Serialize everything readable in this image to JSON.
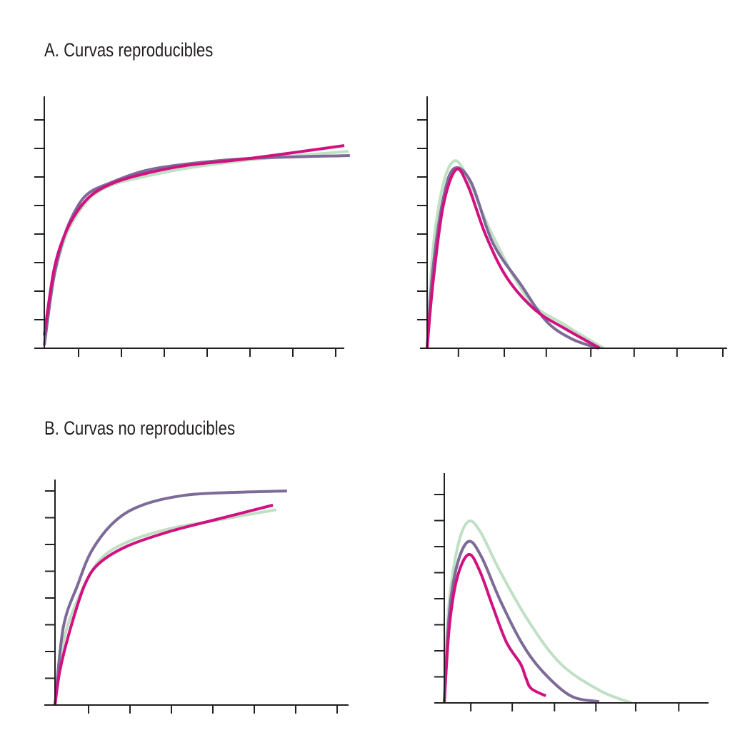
{
  "titles": {
    "a": "A. Curvas reproducibles",
    "b": "B. Curvas no reproducibles"
  },
  "colors": {
    "magenta": "#d0117f",
    "purple": "#7d6a97",
    "green": "#bfe0c4",
    "axis": "#231f20"
  },
  "chart_data": [
    {
      "type": "line",
      "panel": "A-left",
      "title": "",
      "xlabel": "",
      "ylabel": "",
      "grid": false,
      "xlim": [
        0,
        7
      ],
      "ylim": [
        0,
        8.8
      ],
      "xticks": [
        0.8,
        1.8,
        2.8,
        3.8,
        4.8,
        5.8,
        6.8
      ],
      "yticks": [
        1,
        2,
        3,
        4,
        5,
        6,
        7,
        8
      ],
      "series": [
        {
          "color": "#bfe0c4",
          "points": [
            [
              0,
              0.1
            ],
            [
              0.2,
              2.3
            ],
            [
              0.47,
              3.8
            ],
            [
              0.77,
              4.7
            ],
            [
              1.13,
              5.35
            ],
            [
              1.63,
              5.75
            ],
            [
              2.3,
              6.0
            ],
            [
              3.3,
              6.3
            ],
            [
              4.8,
              6.6
            ],
            [
              7.1,
              6.9
            ]
          ]
        },
        {
          "color": "#7d6a97",
          "points": [
            [
              0,
              0.1
            ],
            [
              0.22,
              2.45
            ],
            [
              0.47,
              3.95
            ],
            [
              0.77,
              4.95
            ],
            [
              1.05,
              5.45
            ],
            [
              1.47,
              5.75
            ],
            [
              2.3,
              6.2
            ],
            [
              3.3,
              6.45
            ],
            [
              4.8,
              6.65
            ],
            [
              7.13,
              6.75
            ]
          ]
        },
        {
          "color": "#d0117f",
          "points": [
            [
              0,
              0.45
            ],
            [
              0.22,
              2.7
            ],
            [
              0.47,
              3.95
            ],
            [
              0.77,
              4.8
            ],
            [
              1.13,
              5.4
            ],
            [
              1.63,
              5.8
            ],
            [
              2.3,
              6.1
            ],
            [
              3.3,
              6.4
            ],
            [
              4.8,
              6.65
            ],
            [
              7,
              7.1
            ]
          ]
        }
      ]
    },
    {
      "type": "line",
      "panel": "A-right",
      "title": "",
      "xlabel": "",
      "ylabel": "",
      "grid": false,
      "xlim": [
        0,
        7
      ],
      "ylim": [
        0,
        8.8
      ],
      "xticks": [
        0.73,
        1.8,
        2.78,
        3.82,
        4.83,
        5.83,
        6.9
      ],
      "yticks": [
        1,
        2,
        3,
        4,
        5,
        6,
        7,
        8
      ],
      "series": [
        {
          "color": "#bfe0c4",
          "points": [
            [
              0,
              0
            ],
            [
              0.12,
              3.2
            ],
            [
              0.33,
              5.45
            ],
            [
              0.58,
              6.5
            ],
            [
              0.87,
              6.2
            ],
            [
              1.53,
              3.95
            ],
            [
              2.37,
              1.7
            ],
            [
              3.2,
              0.83
            ],
            [
              4.12,
              0
            ]
          ]
        },
        {
          "color": "#7d6a97",
          "points": [
            [
              0,
              0
            ],
            [
              0.13,
              2.7
            ],
            [
              0.37,
              5.2
            ],
            [
              0.63,
              6.3
            ],
            [
              1.03,
              5.8
            ],
            [
              1.53,
              3.7
            ],
            [
              2.2,
              2.2
            ],
            [
              2.78,
              0.95
            ],
            [
              3.37,
              0.33
            ],
            [
              4,
              0
            ]
          ]
        },
        {
          "color": "#d0117f",
          "points": [
            [
              0,
              0
            ],
            [
              0.13,
              2.2
            ],
            [
              0.37,
              4.95
            ],
            [
              0.67,
              6.25
            ],
            [
              0.95,
              5.7
            ],
            [
              1.37,
              3.95
            ],
            [
              1.87,
              2.45
            ],
            [
              2.53,
              1.33
            ],
            [
              3.2,
              0.7
            ],
            [
              4.03,
              0
            ]
          ]
        }
      ]
    },
    {
      "type": "line",
      "panel": "B-left",
      "title": "",
      "xlabel": "",
      "ylabel": "",
      "grid": false,
      "xlim": [
        0,
        7
      ],
      "ylim": [
        0,
        8.4
      ],
      "xticks": [
        0.81,
        1.81,
        2.81,
        3.81,
        4.81,
        5.81,
        6.81
      ],
      "yticks": [
        1,
        2,
        3,
        4,
        5,
        6,
        7,
        8
      ],
      "series": [
        {
          "color": "#bfe0c4",
          "points": [
            [
              0,
              0
            ],
            [
              0.2,
              2.35
            ],
            [
              0.55,
              3.95
            ],
            [
              1.07,
              5.4
            ],
            [
              1.76,
              6.1
            ],
            [
              2.8,
              6.6
            ],
            [
              3.88,
              6.9
            ],
            [
              5.34,
              7.3
            ]
          ]
        },
        {
          "color": "#7d6a97",
          "points": [
            [
              0,
              0
            ],
            [
              0.2,
              2.9
            ],
            [
              0.55,
              4.5
            ],
            [
              0.9,
              5.8
            ],
            [
              1.47,
              6.9
            ],
            [
              2.16,
              7.5
            ],
            [
              3.19,
              7.85
            ],
            [
              4.4,
              7.95
            ],
            [
              5.6,
              8.0
            ]
          ]
        },
        {
          "color": "#d0117f",
          "points": [
            [
              0,
              0
            ],
            [
              0.12,
              1.3
            ],
            [
              0.38,
              2.9
            ],
            [
              0.72,
              4.5
            ],
            [
              1.07,
              5.3
            ],
            [
              1.76,
              5.95
            ],
            [
              2.8,
              6.5
            ],
            [
              3.88,
              6.93
            ],
            [
              5.26,
              7.47
            ]
          ]
        }
      ]
    },
    {
      "type": "line",
      "panel": "B-right",
      "title": "",
      "xlabel": "",
      "ylabel": "",
      "grid": false,
      "xlim": [
        0,
        6.4
      ],
      "ylim": [
        0,
        8.8
      ],
      "xticks": [
        0.64,
        1.64,
        2.66,
        3.66,
        4.62,
        5.66
      ],
      "yticks": [
        1,
        2,
        3,
        4,
        5,
        6,
        7,
        8
      ],
      "series": [
        {
          "color": "#bfe0c4",
          "points": [
            [
              0,
              0
            ],
            [
              0.09,
              3.4
            ],
            [
              0.31,
              5.9
            ],
            [
              0.57,
              6.95
            ],
            [
              0.86,
              6.6
            ],
            [
              1.34,
              5.07
            ],
            [
              2.03,
              3.15
            ],
            [
              2.81,
              1.5
            ],
            [
              3.76,
              0.47
            ],
            [
              4.52,
              0
            ]
          ]
        },
        {
          "color": "#7d6a97",
          "points": [
            [
              0,
              0
            ],
            [
              0.12,
              3.4
            ],
            [
              0.31,
              5.3
            ],
            [
              0.59,
              6.2
            ],
            [
              0.9,
              5.6
            ],
            [
              1.34,
              3.97
            ],
            [
              1.86,
              2.33
            ],
            [
              2.36,
              1.23
            ],
            [
              3.05,
              0.27
            ],
            [
              3.74,
              0.05
            ]
          ]
        },
        {
          "color": "#d0117f",
          "points": [
            [
              0,
              0
            ],
            [
              0.12,
              2.9
            ],
            [
              0.31,
              4.8
            ],
            [
              0.59,
              5.7
            ],
            [
              0.86,
              5.05
            ],
            [
              1.17,
              3.7
            ],
            [
              1.5,
              2.33
            ],
            [
              1.84,
              1.5
            ],
            [
              1.97,
              0.96
            ],
            [
              2.1,
              0.55
            ],
            [
              2.45,
              0.27
            ]
          ]
        }
      ]
    }
  ]
}
